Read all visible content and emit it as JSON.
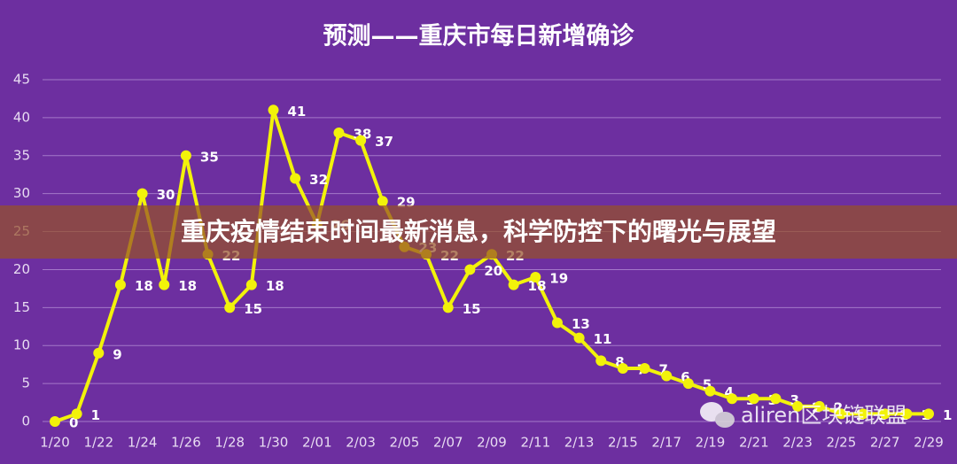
{
  "chart_data": {
    "type": "line",
    "title": "预测——重庆市每日新增确诊",
    "categories": [
      "1/20",
      null,
      "1/22",
      null,
      "1/24",
      null,
      "1/26",
      null,
      "1/28",
      null,
      "1/30",
      null,
      "2/01",
      null,
      "2/03",
      null,
      "2/05",
      null,
      "2/07",
      null,
      "2/09",
      null,
      "2/11",
      null,
      "2/13",
      null,
      "2/15",
      null,
      "2/17",
      null,
      "2/19",
      null,
      "2/21",
      null,
      "2/23",
      null,
      "2/25",
      null,
      "2/27",
      null,
      "2/29"
    ],
    "values": [
      0,
      1,
      9,
      18,
      30,
      18,
      35,
      22,
      15,
      18,
      41,
      32,
      26,
      38,
      37,
      29,
      23,
      22,
      15,
      20,
      22,
      18,
      19,
      13,
      11,
      8,
      7,
      7,
      6,
      5,
      4,
      3,
      3,
      3,
      2,
      2,
      1,
      1,
      1,
      1,
      1
    ],
    "color": "#f2f20a",
    "ylim": [
      0,
      45
    ],
    "yticks": [
      0,
      5,
      10,
      15,
      20,
      25,
      30,
      35,
      40,
      45
    ],
    "grid": true
  },
  "overlay": {
    "headline": "重庆疫情结束时间最新消息，科学防控下的曙光与展望",
    "watermark": "aliren区块链联盟"
  }
}
